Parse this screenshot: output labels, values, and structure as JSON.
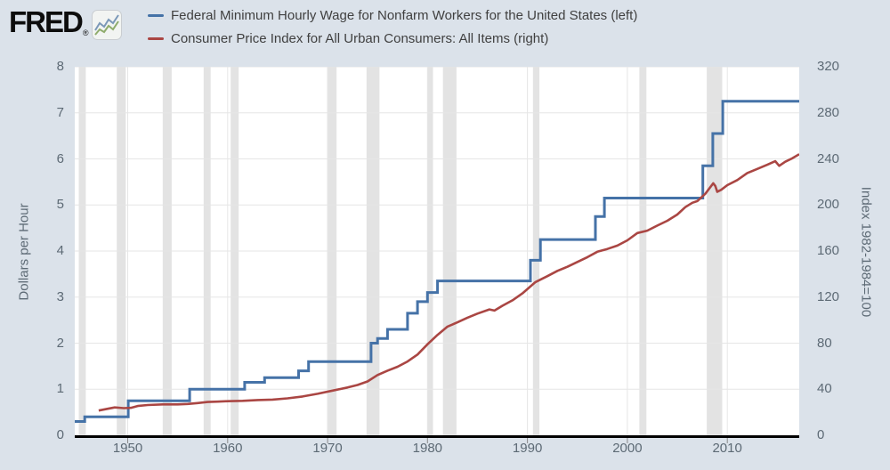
{
  "logo": {
    "text": "FRED",
    "registered": "®",
    "icon": "fred-sparkline-icon"
  },
  "legend": [
    {
      "label": "Federal Minimum Hourly Wage for Nonfarm Workers for the United States (left)",
      "color": "#4572a7"
    },
    {
      "label": "Consumer Price Index for All Urban Consumers: All Items (right)",
      "color": "#aa4643"
    }
  ],
  "colors": {
    "background": "#dbe2ea",
    "plot_background": "#ffffff",
    "gridline": "#e6e6e6",
    "recession_band": "#e3e3e3",
    "axis_line": "#000000",
    "tick_mark": "#8a8a8a",
    "tick_text": "#5d6a75",
    "legend_text": "#404040",
    "wage_line": "#4572a7",
    "cpi_line": "#aa4643"
  },
  "chart_data": {
    "type": "line",
    "title": "",
    "grid": true,
    "legend_position": "top",
    "x_axis": {
      "range": [
        1944.7,
        2017.2
      ],
      "ticks": [
        1950,
        1960,
        1970,
        1980,
        1990,
        2000,
        2010
      ]
    },
    "left_axis": {
      "label": "Dollars per Hour",
      "range": [
        0,
        8
      ],
      "ticks": [
        0,
        1,
        2,
        3,
        4,
        5,
        6,
        7,
        8
      ]
    },
    "right_axis": {
      "label": "Index 1982-1984=100",
      "range": [
        0,
        320
      ],
      "ticks": [
        0,
        40,
        80,
        120,
        160,
        200,
        240,
        280,
        320
      ]
    },
    "recession_bands": [
      [
        1945.1,
        1945.8
      ],
      [
        1948.9,
        1949.8
      ],
      [
        1953.5,
        1954.4
      ],
      [
        1957.6,
        1958.3
      ],
      [
        1960.3,
        1961.1
      ],
      [
        1969.95,
        1970.9
      ],
      [
        1973.9,
        1975.2
      ],
      [
        1980.0,
        1980.55
      ],
      [
        1981.55,
        1982.9
      ],
      [
        1990.55,
        1991.2
      ],
      [
        2001.2,
        2001.9
      ],
      [
        2007.95,
        2009.5
      ]
    ],
    "series": [
      {
        "name": "Federal Minimum Hourly Wage for Nonfarm Workers for the United States",
        "axis": "left",
        "style": "step",
        "color": "#4572a7",
        "width": 3,
        "points": [
          [
            1944.7,
            0.3
          ],
          [
            1945.7,
            0.4
          ],
          [
            1950.05,
            0.75
          ],
          [
            1956.2,
            1.0
          ],
          [
            1961.7,
            1.15
          ],
          [
            1963.7,
            1.25
          ],
          [
            1967.1,
            1.4
          ],
          [
            1968.1,
            1.6
          ],
          [
            1974.35,
            2.0
          ],
          [
            1975.0,
            2.1
          ],
          [
            1976.0,
            2.3
          ],
          [
            1978.0,
            2.65
          ],
          [
            1979.0,
            2.9
          ],
          [
            1980.0,
            3.1
          ],
          [
            1981.0,
            3.35
          ],
          [
            1990.3,
            3.8
          ],
          [
            1991.3,
            4.25
          ],
          [
            1996.8,
            4.75
          ],
          [
            1997.7,
            5.15
          ],
          [
            2007.55,
            5.85
          ],
          [
            2008.55,
            6.55
          ],
          [
            2009.55,
            7.25
          ],
          [
            2017.2,
            7.25
          ]
        ]
      },
      {
        "name": "Consumer Price Index for All Urban Consumers: All Items",
        "axis": "right",
        "style": "line",
        "color": "#aa4643",
        "width": 2.6,
        "points": [
          [
            1947.1,
            21.5
          ],
          [
            1948.0,
            23.0
          ],
          [
            1948.7,
            24.2
          ],
          [
            1949.6,
            23.6
          ],
          [
            1950.3,
            23.8
          ],
          [
            1951.0,
            25.4
          ],
          [
            1952.0,
            26.3
          ],
          [
            1953.5,
            26.8
          ],
          [
            1955.0,
            26.8
          ],
          [
            1956.0,
            27.2
          ],
          [
            1957.0,
            28.0
          ],
          [
            1958.0,
            28.9
          ],
          [
            1959.0,
            29.2
          ],
          [
            1960.0,
            29.6
          ],
          [
            1961.5,
            29.9
          ],
          [
            1963.0,
            30.6
          ],
          [
            1964.5,
            31.0
          ],
          [
            1966.0,
            32.1
          ],
          [
            1967.5,
            33.7
          ],
          [
            1969.0,
            36.0
          ],
          [
            1970.5,
            38.8
          ],
          [
            1972.0,
            41.5
          ],
          [
            1973.0,
            43.7
          ],
          [
            1974.0,
            46.8
          ],
          [
            1975.0,
            52.3
          ],
          [
            1976.0,
            56.1
          ],
          [
            1977.0,
            59.5
          ],
          [
            1978.0,
            64.1
          ],
          [
            1979.0,
            70.1
          ],
          [
            1980.0,
            79.0
          ],
          [
            1981.0,
            87.2
          ],
          [
            1982.0,
            94.4
          ],
          [
            1983.0,
            98.1
          ],
          [
            1984.0,
            102.1
          ],
          [
            1985.0,
            105.7
          ],
          [
            1986.2,
            109.3
          ],
          [
            1986.7,
            108.3
          ],
          [
            1987.5,
            112.5
          ],
          [
            1988.5,
            117.2
          ],
          [
            1989.5,
            123.2
          ],
          [
            1990.8,
            133.0
          ],
          [
            1992.0,
            138.2
          ],
          [
            1993.0,
            142.8
          ],
          [
            1994.0,
            146.3
          ],
          [
            1995.0,
            150.5
          ],
          [
            1996.0,
            154.7
          ],
          [
            1997.0,
            159.4
          ],
          [
            1998.0,
            161.8
          ],
          [
            1999.0,
            164.7
          ],
          [
            2000.0,
            169.3
          ],
          [
            2001.0,
            175.6
          ],
          [
            2002.0,
            177.7
          ],
          [
            2003.0,
            182.1
          ],
          [
            2004.0,
            186.3
          ],
          [
            2005.0,
            191.7
          ],
          [
            2005.8,
            198.1
          ],
          [
            2006.5,
            201.9
          ],
          [
            2007.0,
            203.4
          ],
          [
            2007.8,
            209.7
          ],
          [
            2008.6,
            218.8
          ],
          [
            2008.8,
            216.5
          ],
          [
            2009.0,
            211.4
          ],
          [
            2009.4,
            213.2
          ],
          [
            2010.0,
            217.2
          ],
          [
            2011.0,
            221.6
          ],
          [
            2012.0,
            227.7
          ],
          [
            2013.0,
            231.3
          ],
          [
            2014.0,
            234.9
          ],
          [
            2014.8,
            238.0
          ],
          [
            2015.2,
            234.0
          ],
          [
            2015.8,
            237.5
          ],
          [
            2016.5,
            240.5
          ],
          [
            2017.2,
            244.0
          ]
        ]
      }
    ]
  }
}
